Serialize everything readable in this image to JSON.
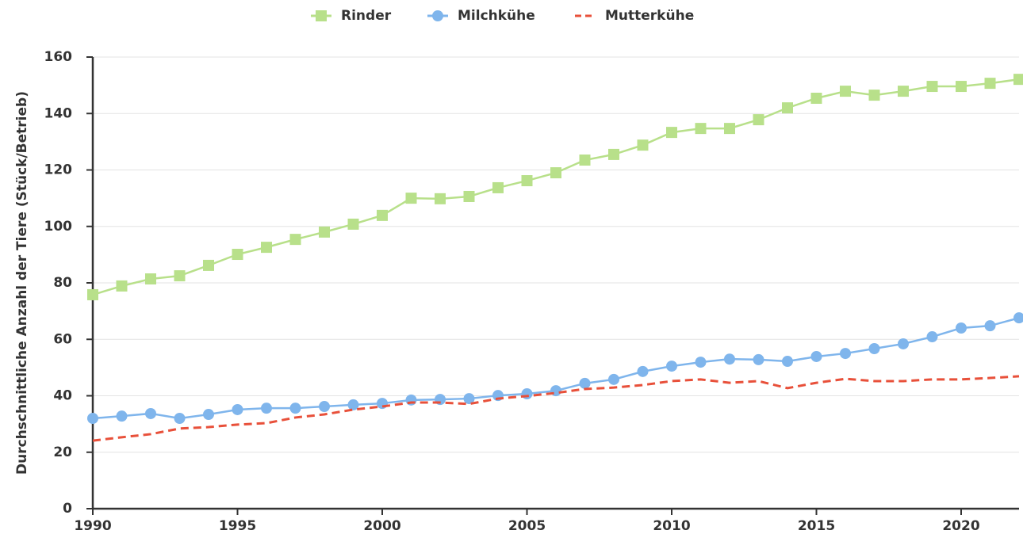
{
  "chart_data": {
    "type": "line",
    "y_label": "Durchschnittliche Anzahl der Tiere (Stück/Betrieb)",
    "x": [
      1990,
      1991,
      1992,
      1993,
      1994,
      1995,
      1996,
      1997,
      1998,
      1999,
      2000,
      2001,
      2002,
      2003,
      2004,
      2005,
      2006,
      2007,
      2008,
      2009,
      2010,
      2011,
      2012,
      2013,
      2014,
      2015,
      2016,
      2017,
      2018,
      2019,
      2020,
      2021,
      2022
    ],
    "series": [
      {
        "name": "Rinder",
        "color": "#b8e08a",
        "marker": "square",
        "dash": false,
        "values": [
          75.8,
          78.9,
          81.4,
          82.5,
          86.2,
          90.1,
          92.6,
          95.4,
          98.0,
          100.8,
          103.9,
          110.0,
          109.8,
          110.6,
          113.7,
          116.2,
          119.0,
          123.5,
          125.5,
          128.8,
          133.3,
          134.7,
          134.7,
          137.8,
          142.0,
          145.4,
          147.9,
          146.5,
          147.9,
          149.6,
          149.6,
          150.7,
          152.1
        ]
      },
      {
        "name": "Milchkühe",
        "color": "#7fb5ec",
        "marker": "circle",
        "dash": false,
        "values": [
          32.0,
          32.8,
          33.7,
          32.0,
          33.4,
          35.1,
          35.6,
          35.6,
          36.2,
          36.8,
          37.3,
          38.5,
          38.7,
          39.0,
          40.1,
          40.7,
          41.8,
          44.4,
          45.8,
          48.6,
          50.5,
          51.9,
          53.0,
          52.8,
          52.2,
          53.9,
          55.0,
          56.7,
          58.4,
          60.9,
          64.0,
          64.8,
          67.6
        ]
      },
      {
        "name": "Mutterkühe",
        "color": "#e8503a",
        "marker": "none",
        "dash": true,
        "values": [
          24.1,
          25.3,
          26.4,
          28.4,
          28.9,
          29.8,
          30.3,
          32.3,
          33.4,
          35.1,
          36.2,
          37.6,
          37.6,
          37.1,
          39.0,
          39.9,
          41.0,
          42.4,
          42.9,
          43.8,
          45.2,
          45.8,
          44.6,
          45.2,
          42.7,
          44.6,
          46.0,
          45.2,
          45.2,
          45.8,
          45.8,
          46.3,
          46.9
        ]
      }
    ],
    "xlim": [
      1990,
      2022
    ],
    "xticks": [
      1990,
      1995,
      2000,
      2005,
      2010,
      2015,
      2020
    ],
    "ylim": [
      0,
      160
    ],
    "yticks": [
      0,
      20,
      40,
      60,
      80,
      100,
      120,
      140,
      160
    ],
    "grid": true,
    "legend": "top"
  }
}
